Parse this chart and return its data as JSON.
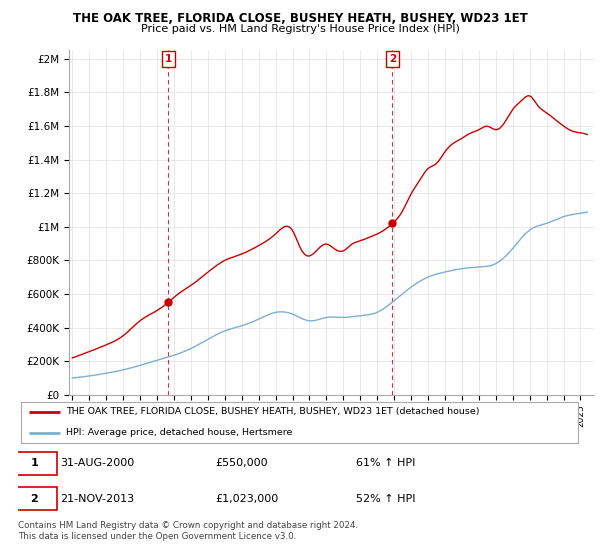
{
  "title": "THE OAK TREE, FLORIDA CLOSE, BUSHEY HEATH, BUSHEY, WD23 1ET",
  "subtitle": "Price paid vs. HM Land Registry's House Price Index (HPI)",
  "ylabel_ticks": [
    "£0",
    "£200K",
    "£400K",
    "£600K",
    "£800K",
    "£1M",
    "£1.2M",
    "£1.4M",
    "£1.6M",
    "£1.8M",
    "£2M"
  ],
  "ytick_values": [
    0,
    200000,
    400000,
    600000,
    800000,
    1000000,
    1200000,
    1400000,
    1600000,
    1800000,
    2000000
  ],
  "ylim": [
    0,
    2050000
  ],
  "xlim_start": 1994.8,
  "xlim_end": 2025.8,
  "red_line_color": "#cc0000",
  "blue_line_color": "#7bafd4",
  "marker1_year": 2000.667,
  "marker1_price": 550000,
  "marker2_year": 2013.9,
  "marker2_price": 1023000,
  "legend_line1": "THE OAK TREE, FLORIDA CLOSE, BUSHEY HEATH, BUSHEY, WD23 1ET (detached house)",
  "legend_line2": "HPI: Average price, detached house, Hertsmere",
  "note1_date": "31-AUG-2000",
  "note1_price": "£550,000",
  "note1_hpi": "61% ↑ HPI",
  "note2_date": "21-NOV-2013",
  "note2_price": "£1,023,000",
  "note2_hpi": "52% ↑ HPI",
  "footer": "Contains HM Land Registry data © Crown copyright and database right 2024.\nThis data is licensed under the Open Government Licence v3.0.",
  "dashed_line1_year": 2000.667,
  "dashed_line2_year": 2013.9,
  "grid_color": "#e0e0e0",
  "title_fontsize": 8.5,
  "subtitle_fontsize": 8
}
